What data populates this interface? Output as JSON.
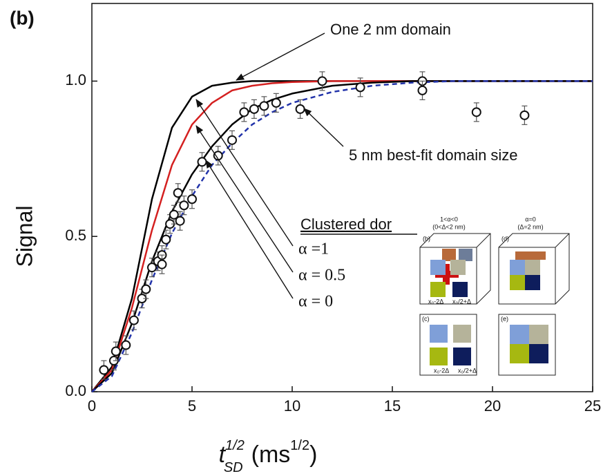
{
  "chart_data": {
    "type": "scatter",
    "panel_label": "(b)",
    "y_label": "Signal",
    "x_label": {
      "base": "t",
      "sup": "1/2",
      "sub": "SD",
      "unit": "(ms",
      "unit_sup": "1/2",
      "close": ")"
    },
    "xlim": [
      0,
      25
    ],
    "ylim": [
      0,
      1.25
    ],
    "xticks": [
      0,
      5,
      10,
      15,
      20,
      25
    ],
    "yticks": [
      {
        "value": 0,
        "label": "0.0"
      },
      {
        "value": 0.5,
        "label": "0.5"
      },
      {
        "value": 1,
        "label": "1.0"
      }
    ],
    "series": [
      {
        "color": "#111111",
        "x": [
          0.6,
          1.1,
          1.2,
          1.7,
          2.1,
          2.5,
          2.7,
          3.0,
          3.3,
          3.5,
          3.5,
          3.7,
          3.9,
          4.1,
          4.3,
          4.4,
          4.6,
          5.0,
          5.5,
          6.3,
          7.0,
          7.6,
          8.1,
          8.6,
          9.2,
          10.4,
          11.5,
          13.4,
          16.5,
          16.5,
          19.2,
          21.6
        ],
        "values": [
          0.07,
          0.1,
          0.13,
          0.15,
          0.23,
          0.3,
          0.33,
          0.4,
          0.42,
          0.44,
          0.41,
          0.49,
          0.54,
          0.57,
          0.64,
          0.55,
          0.6,
          0.62,
          0.74,
          0.76,
          0.81,
          0.9,
          0.91,
          0.92,
          0.93,
          0.91,
          1.0,
          0.98,
          1.0,
          0.97,
          0.9,
          0.89
        ],
        "errors": [
          0.03,
          0.03,
          0.03,
          0.03,
          0.03,
          0.03,
          0.03,
          0.03,
          0.03,
          0.03,
          0.03,
          0.03,
          0.03,
          0.03,
          0.03,
          0.03,
          0.03,
          0.03,
          0.03,
          0.03,
          0.03,
          0.03,
          0.03,
          0.03,
          0.03,
          0.03,
          0.03,
          0.03,
          0.03,
          0.03,
          0.03,
          0.03
        ]
      }
    ],
    "curves": [
      {
        "color": "#000000",
        "dash": false,
        "x": [
          0,
          1,
          2,
          3,
          4,
          5,
          6,
          7,
          8,
          10,
          25
        ],
        "values": [
          0,
          0.08,
          0.3,
          0.62,
          0.85,
          0.95,
          0.985,
          0.995,
          1,
          1,
          1
        ]
      },
      {
        "color": "#d42020",
        "dash": false,
        "x": [
          0,
          1,
          2,
          3,
          4,
          5,
          6,
          7,
          8,
          9,
          10,
          12,
          25
        ],
        "values": [
          0,
          0.07,
          0.27,
          0.52,
          0.73,
          0.86,
          0.93,
          0.97,
          0.985,
          0.993,
          0.997,
          1,
          1
        ]
      },
      {
        "color": "#000000",
        "dash": false,
        "x": [
          0,
          1,
          2,
          3,
          4,
          5,
          6,
          7,
          8,
          9,
          10,
          12,
          14,
          16,
          25
        ],
        "values": [
          0,
          0.06,
          0.22,
          0.42,
          0.58,
          0.7,
          0.79,
          0.86,
          0.91,
          0.94,
          0.96,
          0.985,
          0.995,
          1,
          1
        ]
      },
      {
        "color": "#2233aa",
        "dash": true,
        "x": [
          0,
          1,
          2,
          3,
          4,
          5,
          6,
          7,
          8,
          9,
          10,
          12,
          14,
          16,
          18,
          20,
          25
        ],
        "values": [
          0,
          0.05,
          0.19,
          0.36,
          0.51,
          0.63,
          0.73,
          0.8,
          0.86,
          0.9,
          0.93,
          0.965,
          0.985,
          0.995,
          1,
          1,
          1
        ]
      }
    ],
    "annotations": [
      "One 2 nm domain",
      "5 nm best-fit domain size",
      "Clustered dor",
      "α =1",
      "α = 0.5",
      "α = 0"
    ],
    "inset": {
      "top_left": "1<α<0",
      "top_left_sub": "(0<Δ<2 nm)",
      "top_right": "α=0",
      "top_right_sub": "(Δ=2 nm)",
      "panels": [
        "(b)",
        "(d)",
        "(c)",
        "(e)"
      ],
      "dims": [
        "x₀-2Δ",
        "x₀/2+Δ",
        "x₀-2Δ",
        "x₀/2+Δ"
      ]
    }
  }
}
